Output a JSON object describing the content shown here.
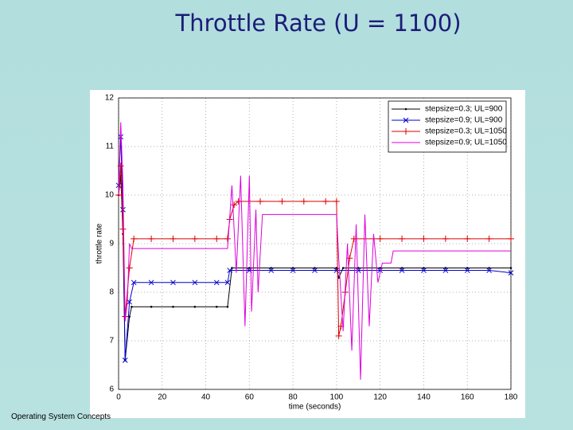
{
  "slide": {
    "title": "Throttle Rate (U = 1100)",
    "footer": "Operating System Concepts"
  },
  "chart_data": {
    "type": "line",
    "xlabel": "time (seconds)",
    "ylabel": "throttle rate",
    "xlim": [
      0,
      180
    ],
    "ylim": [
      6,
      12
    ],
    "xticks": [
      0,
      20,
      40,
      60,
      80,
      100,
      120,
      140,
      160,
      180
    ],
    "yticks": [
      6,
      7,
      8,
      9,
      10,
      11,
      12
    ],
    "grid": true,
    "legend": "upper right",
    "series": [
      {
        "name": "stepsize=0.3; UL=900",
        "color": "#000000",
        "marker": "dot",
        "x": [
          0,
          1,
          2,
          3,
          5,
          6,
          15,
          25,
          35,
          45,
          50,
          52,
          60,
          70,
          80,
          90,
          100,
          101,
          103,
          110,
          120,
          130,
          140,
          150,
          160,
          170,
          180
        ],
        "values": [
          10,
          10.4,
          9.2,
          6.6,
          7.5,
          7.7,
          7.7,
          7.7,
          7.7,
          7.7,
          7.7,
          8.5,
          8.5,
          8.5,
          8.5,
          8.5,
          8.5,
          8.3,
          8.5,
          8.5,
          8.5,
          8.5,
          8.5,
          8.5,
          8.5,
          8.5,
          8.5
        ]
      },
      {
        "name": "stepsize=0.9; UL=900",
        "color": "#0000cc",
        "marker": "x",
        "x": [
          0,
          1,
          2,
          3,
          5,
          7,
          15,
          25,
          35,
          45,
          50,
          51,
          60,
          70,
          80,
          90,
          100,
          110,
          120,
          130,
          140,
          150,
          160,
          170,
          180
        ],
        "values": [
          10.2,
          11.2,
          9.7,
          6.6,
          7.8,
          8.2,
          8.2,
          8.2,
          8.2,
          8.2,
          8.2,
          8.45,
          8.45,
          8.45,
          8.45,
          8.45,
          8.45,
          8.45,
          8.45,
          8.45,
          8.45,
          8.45,
          8.45,
          8.45,
          8.4
        ]
      },
      {
        "name": "stepsize=0.3; UL=1050",
        "color": "#dd0000",
        "marker": "plus",
        "x": [
          0,
          1,
          2,
          3,
          5,
          7,
          15,
          25,
          35,
          45,
          50,
          51,
          53,
          55,
          65,
          75,
          85,
          95,
          100,
          101,
          102,
          104,
          106,
          108,
          120,
          130,
          140,
          150,
          160,
          170,
          180
        ],
        "values": [
          10,
          10.6,
          9.3,
          7.5,
          8.5,
          9.1,
          9.1,
          9.1,
          9.1,
          9.1,
          9.1,
          9.5,
          9.8,
          9.87,
          9.87,
          9.87,
          9.87,
          9.87,
          9.87,
          7.1,
          7.3,
          8,
          8.7,
          9.1,
          9.1,
          9.1,
          9.1,
          9.1,
          9.1,
          9.1,
          9.1
        ]
      },
      {
        "name": "stepsize=0.9; UL=1050",
        "color": "#dd00dd",
        "marker": "none",
        "x": [
          0,
          1,
          2,
          3,
          4,
          5,
          6,
          50,
          52,
          54,
          56,
          58,
          60,
          61,
          63,
          64,
          66,
          70,
          100,
          101,
          103,
          105,
          107,
          109,
          111,
          113,
          115,
          117,
          119,
          121,
          125,
          126,
          180
        ],
        "values": [
          10,
          11.5,
          10.2,
          7.4,
          7.8,
          9,
          8.9,
          8.9,
          10.2,
          8.4,
          10.4,
          7.3,
          10.4,
          7.6,
          9.7,
          8,
          9.6,
          9.6,
          9.6,
          8.7,
          7.2,
          9,
          6.8,
          9.4,
          6.2,
          9.6,
          7.3,
          9.2,
          8.2,
          8.6,
          8.6,
          8.85,
          8.85
        ]
      }
    ]
  }
}
